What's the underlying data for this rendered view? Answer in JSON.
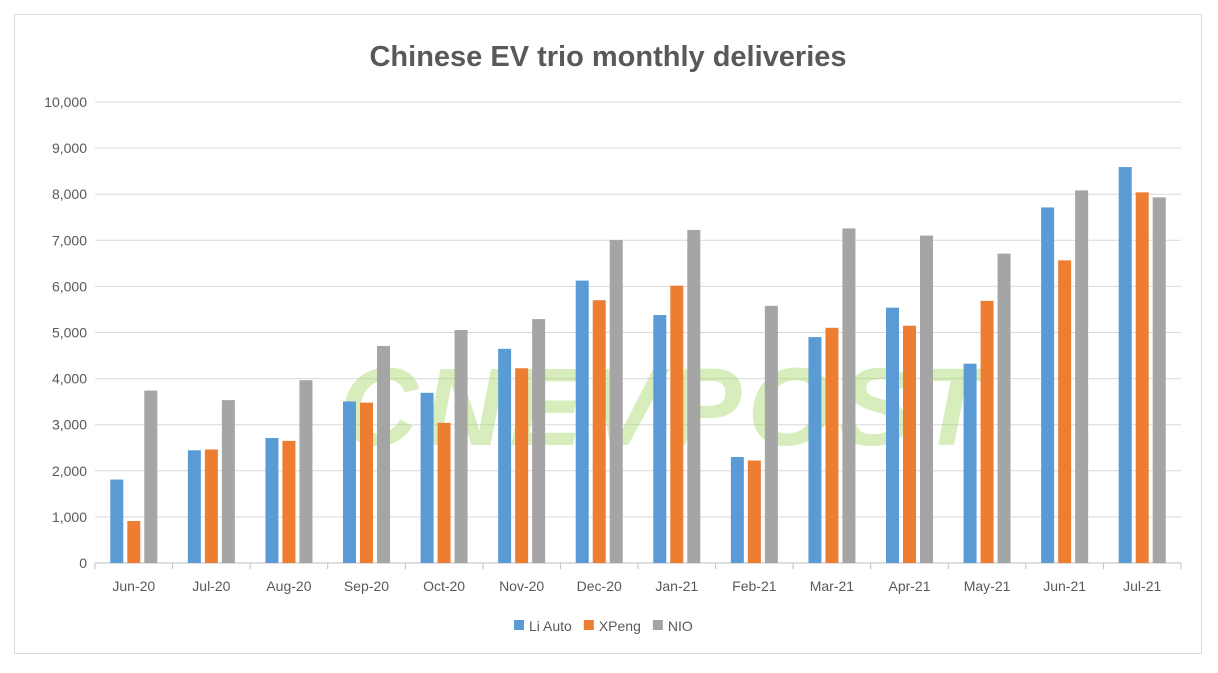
{
  "chart_data": {
    "type": "bar",
    "title": "Chinese EV trio monthly deliveries",
    "xlabel": "",
    "ylabel": "",
    "ylim": [
      0,
      10000
    ],
    "yticks": [
      "0",
      "1,000",
      "2,000",
      "3,000",
      "4,000",
      "5,000",
      "6,000",
      "7,000",
      "8,000",
      "9,000",
      "10,000"
    ],
    "grid": true,
    "legend_position": "bottom",
    "watermark": "CNEVPOST",
    "categories": [
      "Jun-20",
      "Jul-20",
      "Aug-20",
      "Sep-20",
      "Oct-20",
      "Nov-20",
      "Dec-20",
      "Jan-21",
      "Feb-21",
      "Mar-21",
      "Apr-21",
      "May-21",
      "Jun-21",
      "Jul-21"
    ],
    "series": [
      {
        "name": "Li Auto",
        "color": "#5B9BD5",
        "values": [
          1810,
          2445,
          2711,
          3504,
          3692,
          4646,
          6126,
          5379,
          2300,
          4900,
          5539,
          4323,
          7713,
          8589
        ]
      },
      {
        "name": "XPeng",
        "color": "#ED7D31",
        "values": [
          911,
          2463,
          2649,
          3478,
          3040,
          4224,
          5700,
          6015,
          2223,
          5102,
          5147,
          5686,
          6565,
          8040
        ]
      },
      {
        "name": "NIO",
        "color": "#A5A5A5",
        "values": [
          3740,
          3533,
          3965,
          4708,
          5055,
          5291,
          7007,
          7225,
          5578,
          7257,
          7102,
          6711,
          8083,
          7931
        ]
      }
    ]
  }
}
